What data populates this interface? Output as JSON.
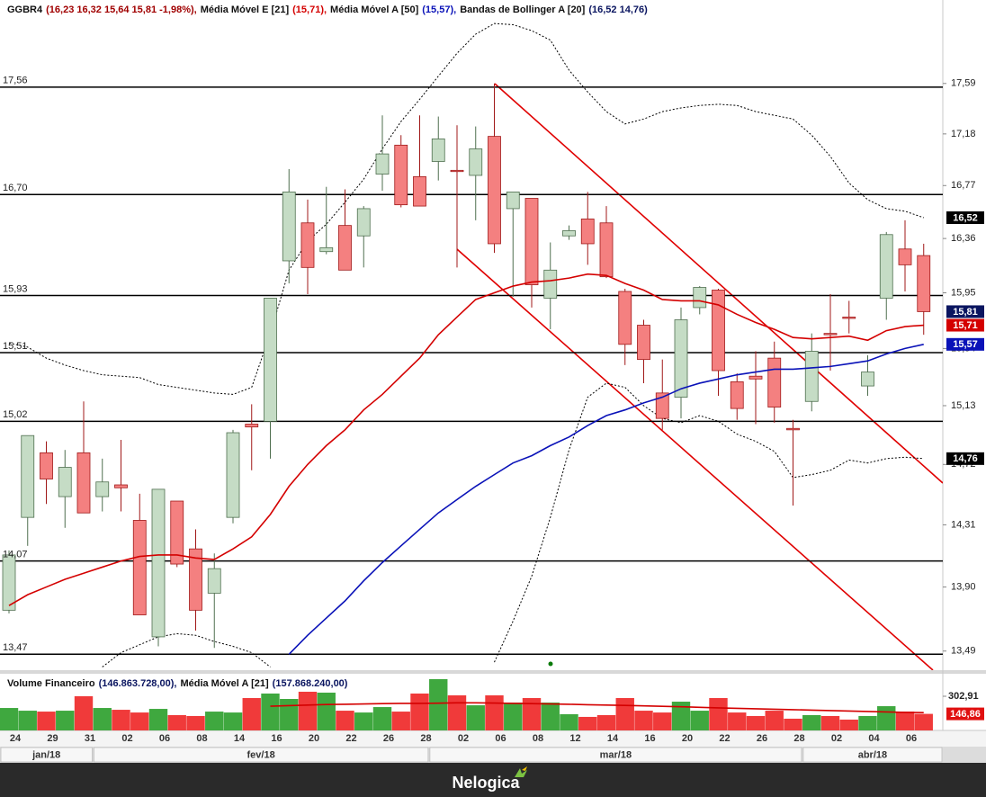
{
  "chart_data": [
    {
      "type": "candlestick",
      "symbol": "GGBR4",
      "ohlc_label": "(16,23 16,32 15,64 15,81 -1,98%),",
      "ohlc_color": "#a00000",
      "close_label": "15,81",
      "close_badge_color": "#0a1560",
      "categories": [
        "24",
        null,
        "29",
        null,
        "31",
        null,
        "02",
        null,
        "06",
        null,
        "08",
        null,
        "14",
        null,
        "16",
        null,
        "20",
        null,
        "22",
        null,
        "26",
        null,
        "28",
        null,
        "02",
        null,
        "06",
        null,
        "08",
        null,
        "12",
        null,
        "14",
        null,
        "16",
        null,
        "20",
        null,
        "22",
        null,
        "26",
        null,
        "28",
        null,
        "02",
        null,
        "04",
        null,
        "06",
        null
      ],
      "months": [
        "jan/18",
        "fev/18",
        "mar/18",
        "abr/18"
      ],
      "open": [
        13.75,
        14.36,
        14.8,
        14.5,
        14.8,
        14.5,
        14.58,
        14.34,
        13.58,
        14.47,
        14.15,
        13.86,
        14.36,
        15.0,
        15.02,
        16.19,
        16.48,
        16.26,
        16.46,
        16.38,
        16.86,
        17.09,
        16.84,
        16.96,
        16.89,
        16.85,
        17.16,
        16.59,
        16.67,
        15.91,
        16.38,
        16.51,
        16.48,
        15.96,
        15.71,
        15.22,
        15.19,
        15.84,
        15.97,
        15.3,
        15.34,
        15.47,
        14.97,
        15.16,
        15.65,
        15.77,
        15.27,
        15.91,
        16.28,
        16.23
      ],
      "high": [
        14.14,
        14.92,
        14.88,
        14.82,
        15.16,
        14.76,
        14.89,
        14.52,
        14.55,
        14.47,
        14.28,
        14.12,
        14.96,
        15.14,
        15.91,
        16.9,
        16.66,
        16.76,
        16.74,
        16.61,
        17.33,
        17.17,
        17.33,
        17.32,
        17.25,
        17.24,
        17.59,
        16.72,
        16.67,
        16.33,
        16.46,
        16.72,
        16.61,
        15.98,
        15.75,
        15.46,
        15.84,
        16.0,
        15.98,
        15.36,
        15.52,
        15.59,
        15.03,
        15.65,
        15.94,
        15.89,
        15.49,
        16.41,
        16.5,
        16.32
      ],
      "low": [
        13.73,
        14.17,
        14.45,
        14.29,
        14.39,
        14.4,
        14.4,
        13.72,
        13.52,
        14.03,
        13.62,
        13.51,
        14.32,
        14.68,
        14.76,
        16.02,
        15.94,
        16.24,
        16.12,
        16.14,
        16.73,
        16.6,
        16.61,
        16.81,
        16.14,
        16.5,
        16.25,
        15.92,
        15.84,
        15.68,
        16.35,
        16.16,
        16.06,
        15.42,
        15.29,
        14.96,
        15.04,
        15.79,
        15.2,
        15.03,
        15.0,
        15.01,
        14.44,
        15.09,
        15.38,
        15.65,
        15.2,
        15.75,
        15.96,
        15.64
      ],
      "close": [
        14.11,
        14.92,
        14.62,
        14.7,
        14.39,
        14.6,
        14.56,
        13.72,
        14.55,
        14.05,
        13.75,
        14.02,
        14.94,
        14.98,
        15.91,
        16.72,
        16.14,
        16.29,
        16.12,
        16.59,
        17.02,
        16.62,
        16.61,
        17.14,
        16.88,
        17.06,
        16.32,
        16.72,
        16.01,
        16.12,
        16.42,
        16.32,
        16.07,
        15.57,
        15.46,
        15.04,
        15.75,
        15.99,
        15.38,
        15.11,
        15.32,
        15.12,
        14.96,
        15.52,
        15.64,
        15.76,
        15.37,
        16.39,
        16.16,
        15.81
      ],
      "up_color": "#c5dcc5",
      "up_stroke": "#4f6f4f",
      "down_color": "#f48080",
      "down_stroke": "#a01818",
      "log_scale": true,
      "ylim": [
        13.37,
        18.29
      ],
      "yticks": [
        {
          "value": 17.59,
          "label": "17,59"
        },
        {
          "value": 17.18,
          "label": "17,18"
        },
        {
          "value": 16.77,
          "label": "16,77"
        },
        {
          "value": 16.36,
          "label": "16,36"
        },
        {
          "value": 15.95,
          "label": "15,95"
        },
        {
          "value": 15.54,
          "label": "15,54"
        },
        {
          "value": 15.13,
          "label": "15,13"
        },
        {
          "value": 14.72,
          "label": "14,72"
        },
        {
          "value": 14.31,
          "label": "14,31"
        },
        {
          "value": 13.9,
          "label": "13,90"
        },
        {
          "value": 13.49,
          "label": "13,49"
        }
      ],
      "levels": [
        {
          "value": 17.56,
          "label": "17,56"
        },
        {
          "value": 16.7,
          "label": "16,70"
        },
        {
          "value": 15.93,
          "label": "15,93"
        },
        {
          "value": 15.51,
          "label": "15,51"
        },
        {
          "value": 15.02,
          "label": "15,02"
        },
        {
          "value": 14.07,
          "label": "14,07"
        },
        {
          "value": 13.47,
          "label": "13,47"
        }
      ],
      "series": [
        {
          "name": "Média Móvel E [21]",
          "legend_value": "(15,71),",
          "last_label": "15,71",
          "color": "#d40000",
          "legend_color": "#d40000",
          "values": [
            13.78,
            13.85,
            13.9,
            13.95,
            13.99,
            14.03,
            14.07,
            14.1,
            14.11,
            14.11,
            14.09,
            14.08,
            14.15,
            14.23,
            14.38,
            14.57,
            14.72,
            14.85,
            14.96,
            15.1,
            15.21,
            15.34,
            15.47,
            15.64,
            15.77,
            15.9,
            15.95,
            16.0,
            16.03,
            16.04,
            16.06,
            16.09,
            16.08,
            16.02,
            15.97,
            15.9,
            15.89,
            15.89,
            15.86,
            15.79,
            15.73,
            15.68,
            15.62,
            15.61,
            15.62,
            15.63,
            15.6,
            15.67,
            15.7,
            15.71
          ]
        },
        {
          "name": "Média Móvel A [50]",
          "legend_value": "(15,57),",
          "last_label": "15,57",
          "color": "#0a12b8",
          "legend_color": "#0a12b8",
          "values": [
            null,
            null,
            null,
            null,
            null,
            null,
            null,
            null,
            null,
            null,
            null,
            null,
            null,
            null,
            null,
            13.47,
            13.59,
            13.7,
            13.81,
            13.94,
            14.06,
            14.17,
            14.28,
            14.39,
            14.48,
            14.57,
            14.65,
            14.73,
            14.78,
            14.85,
            14.91,
            14.99,
            15.06,
            15.1,
            15.15,
            15.19,
            15.25,
            15.29,
            15.32,
            15.35,
            15.37,
            15.39,
            15.39,
            15.4,
            15.41,
            15.43,
            15.45,
            15.5,
            15.54,
            15.57
          ]
        }
      ],
      "bollinger": {
        "name": "Bandas de Bollinger A [20]",
        "legend_value": "(16,52 14,76)",
        "legend_color": "#0a1560",
        "color": "#000000",
        "upper_label": "16,52",
        "lower_label": "14,76",
        "upper": [
          15.58,
          15.55,
          15.47,
          15.42,
          15.38,
          15.35,
          15.34,
          15.33,
          15.28,
          15.26,
          15.24,
          15.22,
          15.21,
          15.26,
          15.65,
          16.12,
          16.34,
          16.47,
          16.64,
          16.82,
          17.06,
          17.28,
          17.46,
          17.65,
          17.84,
          18.0,
          18.09,
          18.08,
          18.03,
          17.95,
          17.7,
          17.52,
          17.36,
          17.26,
          17.3,
          17.36,
          17.39,
          17.41,
          17.42,
          17.41,
          17.36,
          17.33,
          17.3,
          17.17,
          17.0,
          16.79,
          16.66,
          16.59,
          16.57,
          16.52
        ],
        "lower": [
          null,
          null,
          null,
          null,
          null,
          13.39,
          13.48,
          13.53,
          13.58,
          13.6,
          13.59,
          13.55,
          13.52,
          13.48,
          13.39,
          null,
          null,
          null,
          null,
          null,
          null,
          null,
          null,
          null,
          null,
          null,
          13.42,
          13.68,
          13.97,
          14.36,
          14.82,
          15.19,
          15.29,
          15.26,
          15.13,
          15.04,
          15.01,
          15.06,
          15.02,
          14.93,
          14.88,
          14.81,
          14.63,
          14.65,
          14.68,
          14.75,
          14.73,
          14.76,
          14.77,
          14.76
        ]
      }
    },
    {
      "type": "bar",
      "name": "Volume Financeiro",
      "legend_value": "(146.863.728,00),",
      "legend_color": "#0a1560",
      "last_label": "146,86",
      "badge_color": "#e01010",
      "values": [
        199,
        175,
        167,
        175,
        303,
        199,
        183,
        159,
        191,
        136,
        128,
        167,
        159,
        287,
        327,
        279,
        343,
        335,
        175,
        159,
        207,
        167,
        327,
        455,
        311,
        223,
        311,
        247,
        287,
        247,
        144,
        120,
        136,
        287,
        175,
        159,
        255,
        175,
        287,
        159,
        128,
        175,
        104,
        136,
        128,
        96,
        128,
        215,
        167,
        146.86
      ],
      "up_color": "#3fa83f",
      "down_color": "#f03a3a",
      "ylim": [
        0,
        494.4
      ],
      "yticks": [
        {
          "value": 302.91,
          "label": "302,91"
        }
      ],
      "series": [
        {
          "name": "Média Móvel A [21]",
          "legend_value": "(157.868.240,00)",
          "legend_color": "#0a1560",
          "color": "#d40000",
          "values": [
            null,
            null,
            null,
            null,
            null,
            null,
            null,
            null,
            null,
            null,
            null,
            null,
            null,
            null,
            215,
            220,
            225,
            230,
            232,
            235,
            238,
            240,
            240,
            242,
            245,
            245,
            243,
            240,
            238,
            235,
            232,
            228,
            225,
            222,
            218,
            214,
            210,
            205,
            200,
            196,
            192,
            188,
            184,
            180,
            176,
            172,
            168,
            164,
            160,
            157.87
          ]
        }
      ]
    }
  ],
  "footer": {
    "brand": "Nelogica"
  }
}
